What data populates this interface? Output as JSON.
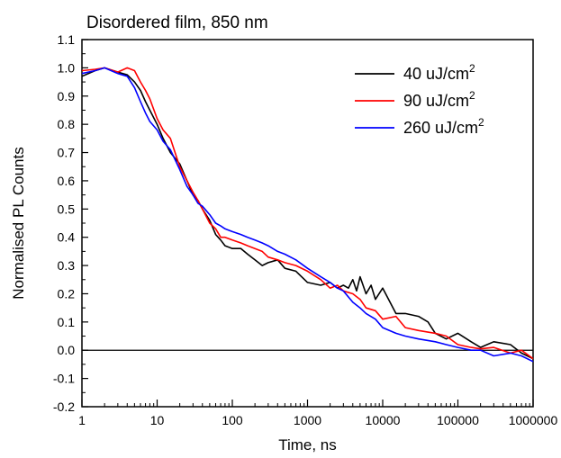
{
  "chart_data": {
    "type": "line",
    "title": "Disordered film, 850 nm",
    "xlabel": "Time, ns",
    "ylabel": "Normalised PL Counts",
    "xscale": "log",
    "xlim": [
      1,
      1000000
    ],
    "ylim": [
      -0.2,
      1.1
    ],
    "xticks": [
      1,
      10,
      100,
      1000,
      10000,
      100000,
      1000000
    ],
    "xtick_labels": [
      "1",
      "10",
      "100",
      "1000",
      "10000",
      "100000",
      "1000000"
    ],
    "yticks": [
      -0.2,
      -0.1,
      0.0,
      0.1,
      0.2,
      0.3,
      0.4,
      0.5,
      0.6,
      0.7,
      0.8,
      0.9,
      1.0,
      1.1
    ],
    "ytick_labels": [
      "-0.2",
      "-0.1",
      "0.0",
      "0.1",
      "0.2",
      "0.3",
      "0.4",
      "0.5",
      "0.6",
      "0.7",
      "0.8",
      "0.9",
      "1.0",
      "1.1"
    ],
    "baseline": 0.0,
    "grid": false,
    "legend_position": "top-right",
    "series": [
      {
        "name": "40 uJ/cm",
        "name_sup": "2",
        "color": "#000000",
        "points": [
          [
            1,
            0.97
          ],
          [
            1.5,
            0.99
          ],
          [
            2,
            1.0
          ],
          [
            3,
            0.985
          ],
          [
            4,
            0.975
          ],
          [
            5,
            0.95
          ],
          [
            6,
            0.92
          ],
          [
            7,
            0.88
          ],
          [
            8,
            0.85
          ],
          [
            10,
            0.8
          ],
          [
            12,
            0.75
          ],
          [
            15,
            0.7
          ],
          [
            20,
            0.66
          ],
          [
            25,
            0.6
          ],
          [
            30,
            0.55
          ],
          [
            35,
            0.53
          ],
          [
            40,
            0.5
          ],
          [
            50,
            0.46
          ],
          [
            60,
            0.41
          ],
          [
            70,
            0.39
          ],
          [
            80,
            0.37
          ],
          [
            100,
            0.36
          ],
          [
            130,
            0.36
          ],
          [
            160,
            0.34
          ],
          [
            200,
            0.32
          ],
          [
            250,
            0.3
          ],
          [
            300,
            0.31
          ],
          [
            400,
            0.32
          ],
          [
            500,
            0.29
          ],
          [
            700,
            0.28
          ],
          [
            1000,
            0.24
          ],
          [
            1500,
            0.23
          ],
          [
            2000,
            0.24
          ],
          [
            2500,
            0.22
          ],
          [
            3000,
            0.23
          ],
          [
            3500,
            0.22
          ],
          [
            4000,
            0.25
          ],
          [
            4500,
            0.21
          ],
          [
            5000,
            0.26
          ],
          [
            6000,
            0.2
          ],
          [
            7000,
            0.23
          ],
          [
            8000,
            0.18
          ],
          [
            10000,
            0.22
          ],
          [
            15000,
            0.13
          ],
          [
            20000,
            0.13
          ],
          [
            30000,
            0.12
          ],
          [
            40000,
            0.1
          ],
          [
            50000,
            0.06
          ],
          [
            70000,
            0.04
          ],
          [
            100000,
            0.06
          ],
          [
            150000,
            0.03
          ],
          [
            200000,
            0.01
          ],
          [
            300000,
            0.03
          ],
          [
            500000,
            0.02
          ],
          [
            700000,
            -0.01
          ],
          [
            1000000,
            -0.03
          ]
        ]
      },
      {
        "name": "90 uJ/cm",
        "name_sup": "2",
        "color": "#ff0000",
        "points": [
          [
            1,
            0.99
          ],
          [
            1.5,
            0.995
          ],
          [
            2,
            1.0
          ],
          [
            3,
            0.985
          ],
          [
            4,
            1.0
          ],
          [
            5,
            0.99
          ],
          [
            6,
            0.95
          ],
          [
            7,
            0.92
          ],
          [
            8,
            0.89
          ],
          [
            10,
            0.82
          ],
          [
            12,
            0.78
          ],
          [
            15,
            0.75
          ],
          [
            20,
            0.65
          ],
          [
            25,
            0.6
          ],
          [
            30,
            0.56
          ],
          [
            35,
            0.53
          ],
          [
            40,
            0.5
          ],
          [
            50,
            0.45
          ],
          [
            60,
            0.43
          ],
          [
            70,
            0.4
          ],
          [
            80,
            0.4
          ],
          [
            100,
            0.39
          ],
          [
            130,
            0.38
          ],
          [
            160,
            0.37
          ],
          [
            200,
            0.36
          ],
          [
            250,
            0.35
          ],
          [
            300,
            0.33
          ],
          [
            400,
            0.32
          ],
          [
            500,
            0.31
          ],
          [
            700,
            0.3
          ],
          [
            1000,
            0.28
          ],
          [
            1500,
            0.25
          ],
          [
            2000,
            0.22
          ],
          [
            2500,
            0.23
          ],
          [
            3000,
            0.21
          ],
          [
            4000,
            0.2
          ],
          [
            5000,
            0.18
          ],
          [
            6000,
            0.15
          ],
          [
            8000,
            0.14
          ],
          [
            10000,
            0.11
          ],
          [
            15000,
            0.12
          ],
          [
            20000,
            0.08
          ],
          [
            30000,
            0.07
          ],
          [
            50000,
            0.06
          ],
          [
            70000,
            0.05
          ],
          [
            100000,
            0.02
          ],
          [
            150000,
            0.01
          ],
          [
            200000,
            0.005
          ],
          [
            300000,
            0.01
          ],
          [
            500000,
            -0.01
          ],
          [
            700000,
            0.0
          ],
          [
            1000000,
            -0.03
          ]
        ]
      },
      {
        "name": "260 uJ/cm",
        "name_sup": "2",
        "color": "#0000ff",
        "points": [
          [
            1,
            0.98
          ],
          [
            1.5,
            0.99
          ],
          [
            2,
            1.0
          ],
          [
            3,
            0.98
          ],
          [
            4,
            0.97
          ],
          [
            5,
            0.93
          ],
          [
            6,
            0.88
          ],
          [
            7,
            0.84
          ],
          [
            8,
            0.81
          ],
          [
            10,
            0.78
          ],
          [
            12,
            0.74
          ],
          [
            15,
            0.71
          ],
          [
            20,
            0.64
          ],
          [
            25,
            0.58
          ],
          [
            30,
            0.55
          ],
          [
            35,
            0.52
          ],
          [
            40,
            0.51
          ],
          [
            50,
            0.48
          ],
          [
            60,
            0.45
          ],
          [
            70,
            0.44
          ],
          [
            80,
            0.43
          ],
          [
            100,
            0.42
          ],
          [
            130,
            0.41
          ],
          [
            160,
            0.4
          ],
          [
            200,
            0.39
          ],
          [
            250,
            0.38
          ],
          [
            300,
            0.37
          ],
          [
            400,
            0.35
          ],
          [
            500,
            0.34
          ],
          [
            700,
            0.32
          ],
          [
            1000,
            0.29
          ],
          [
            1500,
            0.26
          ],
          [
            2000,
            0.24
          ],
          [
            2500,
            0.22
          ],
          [
            3000,
            0.21
          ],
          [
            4000,
            0.17
          ],
          [
            5000,
            0.15
          ],
          [
            6000,
            0.13
          ],
          [
            8000,
            0.11
          ],
          [
            10000,
            0.08
          ],
          [
            15000,
            0.06
          ],
          [
            20000,
            0.05
          ],
          [
            30000,
            0.04
          ],
          [
            50000,
            0.03
          ],
          [
            70000,
            0.02
          ],
          [
            100000,
            0.01
          ],
          [
            150000,
            0.0
          ],
          [
            200000,
            0.0
          ],
          [
            300000,
            -0.02
          ],
          [
            500000,
            -0.01
          ],
          [
            700000,
            -0.02
          ],
          [
            1000000,
            -0.04
          ]
        ]
      }
    ]
  }
}
